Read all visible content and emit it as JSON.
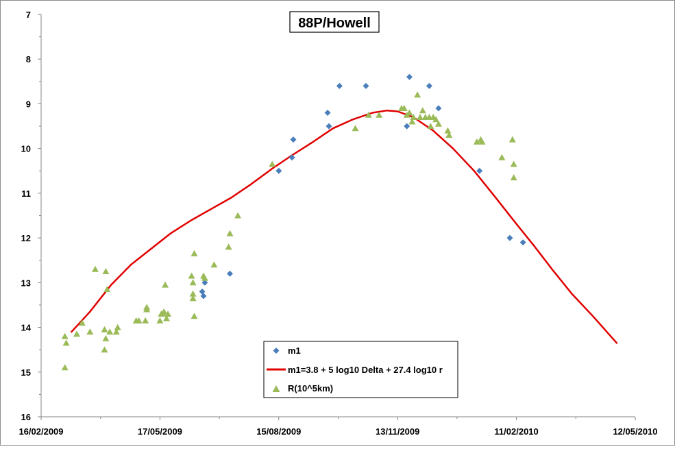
{
  "chart_data": {
    "type": "scatter",
    "title": "88P/Howell",
    "xlabel": "",
    "ylabel": "",
    "x_axis": {
      "type": "date",
      "min": "2009-02-16",
      "max": "2010-05-12",
      "ticks": [
        "16/02/2009",
        "17/05/2009",
        "15/08/2009",
        "13/11/2009",
        "11/02/2010",
        "12/05/2010"
      ],
      "tick_dates": [
        "2009-02-16",
        "2009-05-17",
        "2009-08-15",
        "2009-11-13",
        "2010-02-11",
        "2010-05-12"
      ]
    },
    "y_axis": {
      "min": 7,
      "max": 16,
      "inverted": true,
      "ticks": [
        "7",
        "8",
        "9",
        "10",
        "11",
        "12",
        "13",
        "14",
        "15",
        "16"
      ]
    },
    "grid": false,
    "legend": {
      "placement": "bottom-center",
      "entries": [
        {
          "key": "m1",
          "label": "m1",
          "marker": "diamond",
          "color": "#4a7ebb"
        },
        {
          "key": "model",
          "label": "m1=3.8 + 5 log10 Delta + 27.4 log10 r",
          "marker": "line",
          "color": "#e00000"
        },
        {
          "key": "r",
          "label": "R(10^5km)",
          "marker": "triangle",
          "color": "#9bbb59"
        }
      ]
    },
    "series": [
      {
        "key": "m1",
        "name": "m1",
        "color": "#4a7ebb",
        "marker": "diamond",
        "points": [
          [
            "2009-06-18",
            13.2
          ],
          [
            "2009-06-19",
            13.3
          ],
          [
            "2009-06-20",
            13.0
          ],
          [
            "2009-07-09",
            12.8
          ],
          [
            "2009-08-15",
            10.5
          ],
          [
            "2009-08-25",
            10.2
          ],
          [
            "2009-08-26",
            9.8
          ],
          [
            "2009-09-21",
            9.2
          ],
          [
            "2009-09-22",
            9.5
          ],
          [
            "2009-09-30",
            8.6
          ],
          [
            "2009-10-20",
            8.6
          ],
          [
            "2009-11-20",
            9.5
          ],
          [
            "2009-11-22",
            8.4
          ],
          [
            "2009-12-07",
            8.6
          ],
          [
            "2009-12-14",
            9.1
          ],
          [
            "2010-01-14",
            10.5
          ],
          [
            "2010-02-06",
            12.0
          ],
          [
            "2010-02-16",
            12.1
          ]
        ]
      },
      {
        "key": "r",
        "name": "R(10^5km)",
        "color": "#9bbb59",
        "marker": "triangle",
        "points": [
          [
            "2009-03-06",
            14.9
          ],
          [
            "2009-03-06",
            14.2
          ],
          [
            "2009-03-07",
            14.35
          ],
          [
            "2009-03-15",
            14.15
          ],
          [
            "2009-03-19",
            13.9
          ],
          [
            "2009-03-25",
            14.1
          ],
          [
            "2009-03-29",
            12.7
          ],
          [
            "2009-04-05",
            14.5
          ],
          [
            "2009-04-05",
            14.05
          ],
          [
            "2009-04-06",
            14.25
          ],
          [
            "2009-04-06",
            12.75
          ],
          [
            "2009-04-07",
            13.15
          ],
          [
            "2009-04-09",
            14.1
          ],
          [
            "2009-04-14",
            14.1
          ],
          [
            "2009-04-15",
            14.0
          ],
          [
            "2009-04-29",
            13.85
          ],
          [
            "2009-05-01",
            13.85
          ],
          [
            "2009-05-06",
            13.85
          ],
          [
            "2009-05-07",
            13.6
          ],
          [
            "2009-05-07",
            13.55
          ],
          [
            "2009-05-17",
            13.85
          ],
          [
            "2009-05-18",
            13.7
          ],
          [
            "2009-05-19",
            13.7
          ],
          [
            "2009-05-20",
            13.65
          ],
          [
            "2009-05-21",
            13.05
          ],
          [
            "2009-05-22",
            13.8
          ],
          [
            "2009-05-23",
            13.7
          ],
          [
            "2009-06-10",
            12.85
          ],
          [
            "2009-06-11",
            13.0
          ],
          [
            "2009-06-11",
            13.25
          ],
          [
            "2009-06-11",
            13.35
          ],
          [
            "2009-06-12",
            12.35
          ],
          [
            "2009-06-12",
            13.75
          ],
          [
            "2009-06-19",
            12.85
          ],
          [
            "2009-06-20",
            12.9
          ],
          [
            "2009-06-27",
            12.6
          ],
          [
            "2009-07-08",
            12.2
          ],
          [
            "2009-07-09",
            11.9
          ],
          [
            "2009-07-15",
            11.5
          ],
          [
            "2009-08-10",
            10.35
          ],
          [
            "2009-10-12",
            9.55
          ],
          [
            "2009-10-22",
            9.25
          ],
          [
            "2009-10-30",
            9.25
          ],
          [
            "2009-11-16",
            9.1
          ],
          [
            "2009-11-18",
            9.1
          ],
          [
            "2009-11-20",
            9.25
          ],
          [
            "2009-11-22",
            9.2
          ],
          [
            "2009-11-24",
            9.4
          ],
          [
            "2009-11-25",
            9.3
          ],
          [
            "2009-11-28",
            8.8
          ],
          [
            "2009-11-30",
            9.3
          ],
          [
            "2009-12-02",
            9.15
          ],
          [
            "2009-12-04",
            9.3
          ],
          [
            "2009-12-07",
            9.3
          ],
          [
            "2009-12-08",
            9.5
          ],
          [
            "2009-12-10",
            9.3
          ],
          [
            "2009-12-12",
            9.35
          ],
          [
            "2009-12-14",
            9.45
          ],
          [
            "2009-12-21",
            9.6
          ],
          [
            "2009-12-22",
            9.7
          ],
          [
            "2010-01-12",
            9.85
          ],
          [
            "2010-01-15",
            9.8
          ],
          [
            "2010-01-16",
            9.85
          ],
          [
            "2010-01-31",
            10.2
          ],
          [
            "2010-02-08",
            9.8
          ],
          [
            "2010-02-09",
            10.35
          ],
          [
            "2010-02-09",
            10.65
          ]
        ]
      },
      {
        "key": "model",
        "name": "m1=3.8 + 5 log10 Delta + 27.4 log10 r",
        "color": "#e00000",
        "marker": "line",
        "points": [
          [
            "2009-03-11",
            14.1
          ],
          [
            "2009-03-25",
            13.65
          ],
          [
            "2009-04-10",
            13.05
          ],
          [
            "2009-04-25",
            12.6
          ],
          [
            "2009-05-10",
            12.25
          ],
          [
            "2009-05-25",
            11.9
          ],
          [
            "2009-06-10",
            11.6
          ],
          [
            "2009-06-25",
            11.35
          ],
          [
            "2009-07-10",
            11.1
          ],
          [
            "2009-07-25",
            10.8
          ],
          [
            "2009-08-10",
            10.45
          ],
          [
            "2009-08-25",
            10.15
          ],
          [
            "2009-09-10",
            9.85
          ],
          [
            "2009-09-25",
            9.55
          ],
          [
            "2009-10-10",
            9.35
          ],
          [
            "2009-10-25",
            9.2
          ],
          [
            "2009-11-05",
            9.15
          ],
          [
            "2009-11-13",
            9.17
          ],
          [
            "2009-11-25",
            9.3
          ],
          [
            "2009-12-10",
            9.6
          ],
          [
            "2009-12-25",
            10.0
          ],
          [
            "2010-01-10",
            10.5
          ],
          [
            "2010-01-25",
            11.05
          ],
          [
            "2010-02-10",
            11.65
          ],
          [
            "2010-02-25",
            12.2
          ],
          [
            "2010-03-10",
            12.7
          ],
          [
            "2010-03-25",
            13.25
          ],
          [
            "2010-04-10",
            13.75
          ],
          [
            "2010-04-28",
            14.35
          ]
        ]
      }
    ]
  }
}
